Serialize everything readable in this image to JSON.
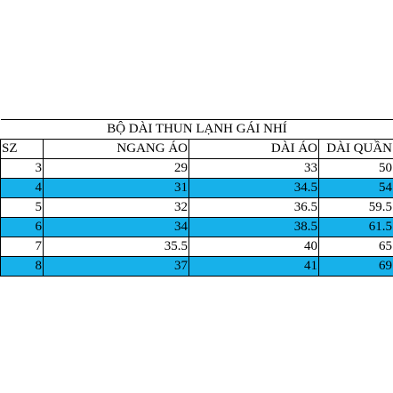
{
  "table": {
    "title": "BỘ DÀI THUN LẠNH GÁI NHÍ",
    "headers": [
      "SZ",
      "NGANG ÁO",
      "DÀI ÁO",
      "DÀI QUẦN"
    ],
    "rows": [
      [
        3,
        29,
        33,
        50
      ],
      [
        4,
        31,
        34.5,
        54
      ],
      [
        5,
        32,
        36.5,
        59.5
      ],
      [
        6,
        34,
        38.5,
        61.5
      ],
      [
        7,
        35.5,
        40,
        65
      ],
      [
        8,
        37,
        41,
        69
      ]
    ]
  }
}
